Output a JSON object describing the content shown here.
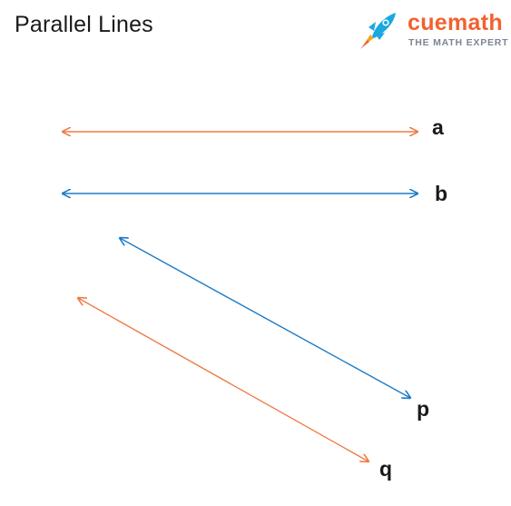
{
  "header": {
    "title": "Parallel Lines"
  },
  "brand": {
    "name": "cuemath",
    "tagline": "THE MATH EXPERT",
    "icon": "rocket-icon",
    "brand_color": "#f2612f",
    "secondary_color": "#1aa8e0"
  },
  "diagram": {
    "lines": [
      {
        "label": "a",
        "color": "#f07a45"
      },
      {
        "label": "b",
        "color": "#1e7cc7"
      },
      {
        "label": "p",
        "color": "#1e7cc7"
      },
      {
        "label": "q",
        "color": "#f07a45"
      }
    ]
  }
}
